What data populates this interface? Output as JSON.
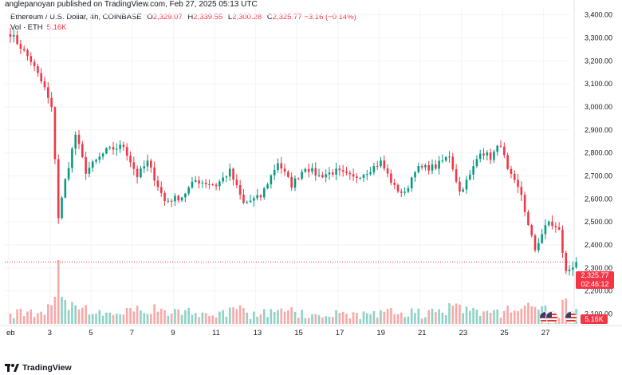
{
  "header": {
    "published_line": "anglepanoyan published on TradingView.com, Feb 27, 2025 05:13 UTC"
  },
  "legend": {
    "symbol": "Ethereum / U.S. Dollar, 4h, COINBASE",
    "open_label": "O",
    "open": "2,329.07",
    "high_label": "H",
    "high": "2,339.55",
    "low_label": "L",
    "low": "2,300.28",
    "close_label": "C",
    "close": "2,325.77",
    "change": "−3.16 (−0.14%)",
    "volume_label": "Vol · ETH",
    "volume": "5.16K"
  },
  "price_tag": {
    "price": "2,325.77",
    "countdown": "02:46:12"
  },
  "volume_tag": "5.16K",
  "footer": {
    "brand": "TradingView"
  },
  "colors": {
    "up": "#089981",
    "down": "#f23645",
    "up_volume": "#8ed2c6",
    "down_volume": "#f7a9a7",
    "last_price_line": "#f23645",
    "grid": "#f0f3fa"
  },
  "chart_data": {
    "type": "candlestick",
    "timeframe": "4h",
    "y_ticks": [
      2100,
      2200,
      2300,
      2400,
      2500,
      2600,
      2700,
      2800,
      2900,
      3000,
      3100,
      3200,
      3300,
      3400
    ],
    "y_tick_labels": [
      "2,100.00",
      "2,200.00",
      "2,300.00",
      "2,400.00",
      "2,500.00",
      "2,600.00",
      "2,700.00",
      "2,800.00",
      "2,900.00",
      "3,000.00",
      "3,100.00",
      "3,200.00",
      "3,300.00",
      "3,400.00"
    ],
    "x_labels": [
      {
        "label": "eb",
        "day": 1
      },
      {
        "label": "3",
        "day": 3
      },
      {
        "label": "5",
        "day": 5
      },
      {
        "label": "7",
        "day": 7
      },
      {
        "label": "9",
        "day": 9
      },
      {
        "label": "11",
        "day": 11
      },
      {
        "label": "13",
        "day": 13
      },
      {
        "label": "15",
        "day": 15
      },
      {
        "label": "17",
        "day": 17
      },
      {
        "label": "19",
        "day": 19
      },
      {
        "label": "21",
        "day": 21
      },
      {
        "label": "23",
        "day": 23
      },
      {
        "label": "25",
        "day": 25
      },
      {
        "label": "27",
        "day": 27
      }
    ],
    "ylim": [
      2060,
      3430
    ],
    "last_price": 2325.77,
    "volume_max_k": 60,
    "anchors": [
      {
        "i": 0,
        "p": 3320
      },
      {
        "i": 6,
        "p": 3200
      },
      {
        "i": 10,
        "p": 3080
      },
      {
        "i": 12,
        "p": 2990
      },
      {
        "i": 13,
        "p": 2780
      },
      {
        "i": 14,
        "p": 2520
      },
      {
        "i": 16,
        "p": 2680
      },
      {
        "i": 19,
        "p": 2880
      },
      {
        "i": 22,
        "p": 2720
      },
      {
        "i": 28,
        "p": 2810
      },
      {
        "i": 33,
        "p": 2830
      },
      {
        "i": 37,
        "p": 2700
      },
      {
        "i": 40,
        "p": 2760
      },
      {
        "i": 45,
        "p": 2590
      },
      {
        "i": 50,
        "p": 2610
      },
      {
        "i": 54,
        "p": 2680
      },
      {
        "i": 60,
        "p": 2660
      },
      {
        "i": 64,
        "p": 2720
      },
      {
        "i": 68,
        "p": 2580
      },
      {
        "i": 73,
        "p": 2610
      },
      {
        "i": 78,
        "p": 2760
      },
      {
        "i": 82,
        "p": 2660
      },
      {
        "i": 86,
        "p": 2740
      },
      {
        "i": 90,
        "p": 2700
      },
      {
        "i": 95,
        "p": 2720
      },
      {
        "i": 100,
        "p": 2690
      },
      {
        "i": 104,
        "p": 2720
      },
      {
        "i": 108,
        "p": 2760
      },
      {
        "i": 112,
        "p": 2650
      },
      {
        "i": 115,
        "p": 2620
      },
      {
        "i": 118,
        "p": 2730
      },
      {
        "i": 124,
        "p": 2740
      },
      {
        "i": 128,
        "p": 2790
      },
      {
        "i": 131,
        "p": 2630
      },
      {
        "i": 134,
        "p": 2700
      },
      {
        "i": 137,
        "p": 2810
      },
      {
        "i": 140,
        "p": 2780
      },
      {
        "i": 143,
        "p": 2840
      },
      {
        "i": 145,
        "p": 2720
      },
      {
        "i": 149,
        "p": 2620
      },
      {
        "i": 151,
        "p": 2480
      },
      {
        "i": 153,
        "p": 2380
      },
      {
        "i": 155,
        "p": 2450
      },
      {
        "i": 157,
        "p": 2500
      },
      {
        "i": 160,
        "p": 2460
      },
      {
        "i": 162,
        "p": 2280
      },
      {
        "i": 165,
        "p": 2326
      }
    ],
    "n_candles": 166,
    "days_per_candle": 0.1667
  }
}
